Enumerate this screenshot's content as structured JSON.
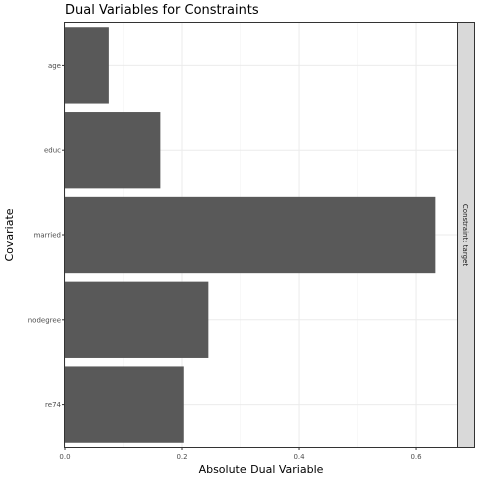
{
  "chart_data": {
    "type": "bar",
    "orientation": "horizontal",
    "title": "Dual Variables for Constraints",
    "xlabel": "Absolute Dual Variable",
    "ylabel": "Covariate",
    "facet_label": "Constraint: target",
    "categories": [
      "age",
      "educ",
      "married",
      "nodegree",
      "re74"
    ],
    "values": [
      0.075,
      0.163,
      0.633,
      0.245,
      0.203
    ],
    "xlim": [
      0.0,
      0.67
    ],
    "x_ticks": [
      "0.0",
      "0.2",
      "0.4",
      "0.6"
    ],
    "x_tick_values": [
      0.0,
      0.2,
      0.4,
      0.6
    ],
    "grid": true,
    "bar_color": "#595959",
    "gridline_color": "#ebebeb",
    "strip_fill": "#d9d9d9",
    "panel_border_color": "#333333"
  }
}
